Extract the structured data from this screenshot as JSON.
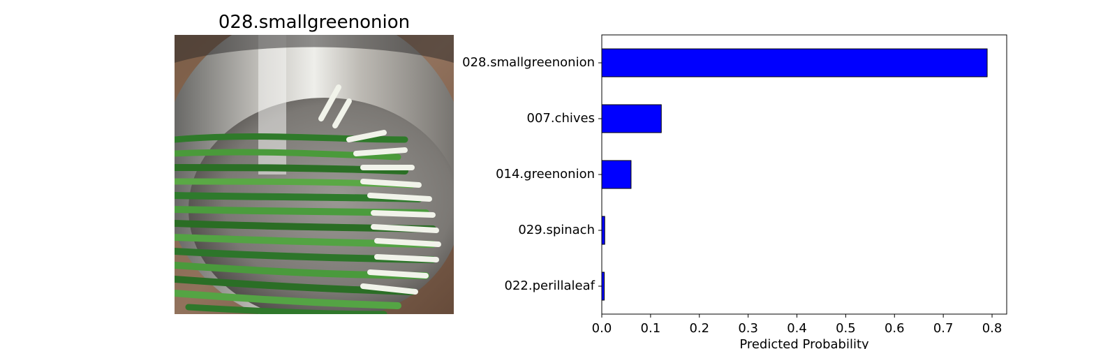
{
  "image_panel": {
    "title": "028.smallgreenonion"
  },
  "chart_data": {
    "type": "bar",
    "orientation": "horizontal",
    "categories": [
      "028.smallgreenonion",
      "007.chives",
      "014.greenonion",
      "029.spinach",
      "022.perillaleaf"
    ],
    "values": [
      0.79,
      0.122,
      0.06,
      0.006,
      0.005
    ],
    "xlabel": "Predicted Probability",
    "ylabel": "",
    "xlim": [
      0,
      0.83
    ],
    "xticks": [
      "0.0",
      "0.1",
      "0.2",
      "0.3",
      "0.4",
      "0.5",
      "0.6",
      "0.7",
      "0.8"
    ],
    "bar_color": "#0000ff",
    "bar_edge_color": "#000000",
    "grid": false
  }
}
